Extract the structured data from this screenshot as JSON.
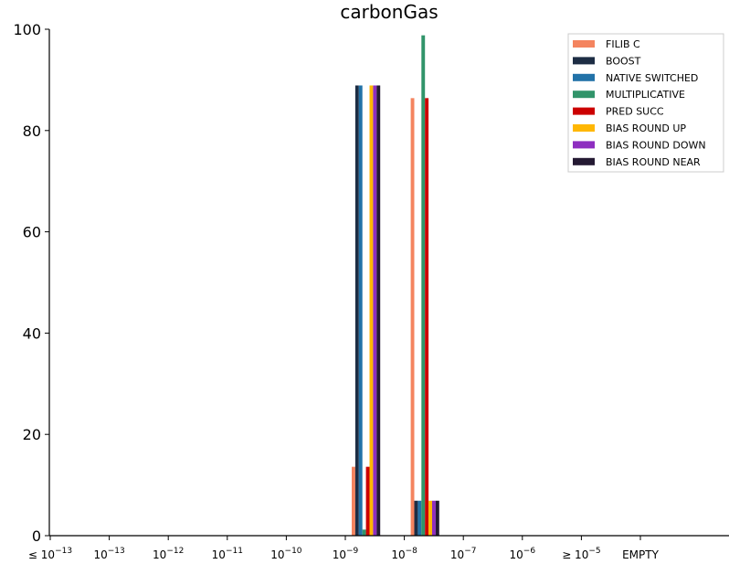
{
  "chart_data": {
    "type": "bar",
    "title": "carbonGas",
    "xlabel": "",
    "ylabel": "",
    "ylim": [
      0,
      100
    ],
    "yticks": [
      "0",
      "20",
      "40",
      "60",
      "80",
      "100"
    ],
    "categories": [
      {
        "base": "≤ 10",
        "exp": "−13"
      },
      {
        "base": "10",
        "exp": "−13"
      },
      {
        "base": "10",
        "exp": "−12"
      },
      {
        "base": "10",
        "exp": "−11"
      },
      {
        "base": "10",
        "exp": "−10"
      },
      {
        "base": "10",
        "exp": "−9"
      },
      {
        "base": "10",
        "exp": "−8"
      },
      {
        "base": "10",
        "exp": "−7"
      },
      {
        "base": "10",
        "exp": "−6"
      },
      {
        "base": "≥ 10",
        "exp": "−5"
      },
      {
        "base": "EMPTY",
        "exp": ""
      }
    ],
    "legend_position": "top-right",
    "grid": false,
    "series": [
      {
        "name": "FILIB C",
        "color": "#f4845f",
        "values": [
          0,
          0,
          0,
          0,
          0,
          13.6,
          86.4,
          0,
          0,
          0,
          0
        ]
      },
      {
        "name": "BOOST",
        "color": "#1d2d44",
        "values": [
          0,
          0,
          0,
          0,
          0,
          88.9,
          6.9,
          0,
          0,
          0,
          0
        ]
      },
      {
        "name": "NATIVE SWITCHED",
        "color": "#2272a8",
        "values": [
          0,
          0,
          0,
          0,
          0,
          88.9,
          6.9,
          0,
          0,
          0,
          0
        ]
      },
      {
        "name": "MULTIPLICATIVE",
        "color": "#31946a",
        "values": [
          0,
          0,
          0,
          0,
          0,
          1.2,
          98.8,
          0,
          0,
          0,
          0
        ]
      },
      {
        "name": "PRED SUCC",
        "color": "#cc0000",
        "values": [
          0,
          0,
          0,
          0,
          0,
          13.6,
          86.4,
          0,
          0,
          0,
          0
        ]
      },
      {
        "name": "BIAS ROUND UP",
        "color": "#ffb703",
        "values": [
          0,
          0,
          0,
          0,
          0,
          88.9,
          6.9,
          0,
          0,
          0,
          0
        ]
      },
      {
        "name": "BIAS ROUND DOWN",
        "color": "#8e2ec0",
        "values": [
          0,
          0,
          0,
          0,
          0,
          88.9,
          6.9,
          0,
          0,
          0,
          0
        ]
      },
      {
        "name": "BIAS ROUND NEAR",
        "color": "#241a33",
        "values": [
          0,
          0,
          0,
          0,
          0,
          88.9,
          6.9,
          0,
          0,
          0,
          0
        ]
      }
    ]
  }
}
